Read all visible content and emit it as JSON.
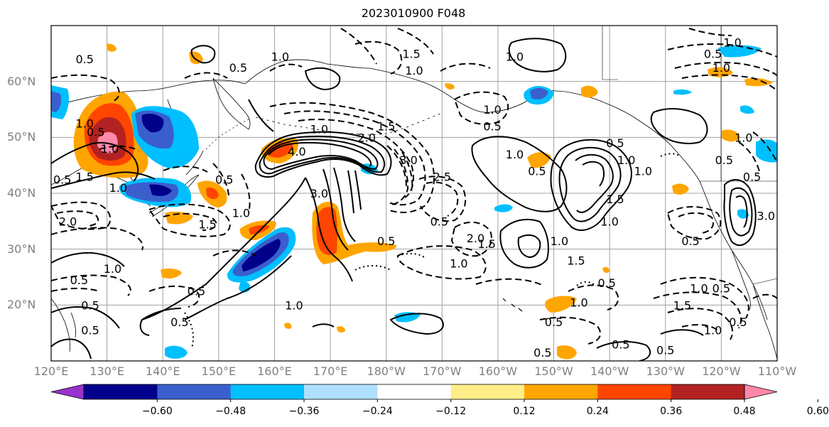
{
  "title": "2023010900 F048",
  "map": {
    "projection": "equirectangular",
    "lon_range": [
      120,
      250
    ],
    "lat_range": [
      10,
      70
    ],
    "lat_ticks": [
      {
        "value": 60,
        "label": "60°N"
      },
      {
        "value": 50,
        "label": "50°N"
      },
      {
        "value": 40,
        "label": "40°N"
      },
      {
        "value": 30,
        "label": "30°N"
      },
      {
        "value": 20,
        "label": "20°N"
      }
    ],
    "lon_ticks": [
      {
        "value": 120,
        "label": "120°E"
      },
      {
        "value": 130,
        "label": "130°E"
      },
      {
        "value": 140,
        "label": "140°E"
      },
      {
        "value": 150,
        "label": "150°E"
      },
      {
        "value": 160,
        "label": "160°E"
      },
      {
        "value": 170,
        "label": "170°E"
      },
      {
        "value": 180,
        "label": "180°W"
      },
      {
        "value": 190,
        "label": "170°W"
      },
      {
        "value": 200,
        "label": "160°W"
      },
      {
        "value": 210,
        "label": "150°W"
      },
      {
        "value": 220,
        "label": "140°W"
      },
      {
        "value": 230,
        "label": "130°W"
      },
      {
        "value": 240,
        "label": "120°W"
      },
      {
        "value": 250,
        "label": "110°W"
      }
    ],
    "grid": true
  },
  "colorbar": {
    "ticks": [
      "−0.60",
      "−0.48",
      "−0.36",
      "−0.24",
      "−0.12",
      "0.12",
      "0.24",
      "0.36",
      "0.48",
      "0.60"
    ],
    "colors": [
      "#9932cc",
      "#00008b",
      "#3a5fcd",
      "#00bfff",
      "#b0e0ff",
      "#ffffff",
      "#ffee88",
      "#ffa500",
      "#ff4500",
      "#b22222",
      "#ff88aa"
    ],
    "extend": "both"
  },
  "contour_labels": [
    {
      "text": "0.5",
      "lon": 126,
      "lat": 64
    },
    {
      "text": "1.0",
      "lon": 161,
      "lat": 64.5
    },
    {
      "text": "0.5",
      "lon": 153.5,
      "lat": 62.5
    },
    {
      "text": "1.5",
      "lon": 184.5,
      "lat": 65
    },
    {
      "text": "1.0",
      "lon": 185,
      "lat": 62
    },
    {
      "text": "1.0",
      "lon": 203,
      "lat": 64.5
    },
    {
      "text": "1.0",
      "lon": 242,
      "lat": 67
    },
    {
      "text": "0.5",
      "lon": 238.5,
      "lat": 65
    },
    {
      "text": "1.0",
      "lon": 240,
      "lat": 62.5
    },
    {
      "text": "1.0",
      "lon": 126,
      "lat": 52.5
    },
    {
      "text": "0.5",
      "lon": 128,
      "lat": 51
    },
    {
      "text": "1.0",
      "lon": 130.5,
      "lat": 48
    },
    {
      "text": "1.5",
      "lon": 126,
      "lat": 43
    },
    {
      "text": "1.0",
      "lon": 132,
      "lat": 41
    },
    {
      "text": "0.5",
      "lon": 122,
      "lat": 42.5
    },
    {
      "text": "2.0",
      "lon": 123,
      "lat": 35
    },
    {
      "text": "1.5",
      "lon": 148,
      "lat": 34.5
    },
    {
      "text": "1.0",
      "lon": 154,
      "lat": 36.5
    },
    {
      "text": "0.5",
      "lon": 151,
      "lat": 42.5
    },
    {
      "text": "1.0",
      "lon": 131,
      "lat": 26.5
    },
    {
      "text": "0.5",
      "lon": 125,
      "lat": 24.5
    },
    {
      "text": "0.5",
      "lon": 146,
      "lat": 22.5
    },
    {
      "text": "0.5",
      "lon": 143,
      "lat": 17
    },
    {
      "text": "1.0",
      "lon": 163.5,
      "lat": 20
    },
    {
      "text": "0.5",
      "lon": 127,
      "lat": 20
    },
    {
      "text": "0.5",
      "lon": 127,
      "lat": 15.5
    },
    {
      "text": "4.0",
      "lon": 164,
      "lat": 47.5
    },
    {
      "text": "1.0",
      "lon": 168,
      "lat": 51.5
    },
    {
      "text": "1.5",
      "lon": 180,
      "lat": 52
    },
    {
      "text": "2.0",
      "lon": 176.5,
      "lat": 50
    },
    {
      "text": "3.0",
      "lon": 184,
      "lat": 46
    },
    {
      "text": "3.0",
      "lon": 168,
      "lat": 40
    },
    {
      "text": "2.5",
      "lon": 190,
      "lat": 43
    },
    {
      "text": "0.5",
      "lon": 189.5,
      "lat": 35
    },
    {
      "text": "0.5",
      "lon": 180,
      "lat": 31.5
    },
    {
      "text": "2.0",
      "lon": 196,
      "lat": 32
    },
    {
      "text": "1.5",
      "lon": 198,
      "lat": 31
    },
    {
      "text": "1.0",
      "lon": 193,
      "lat": 27.5
    },
    {
      "text": "1.0",
      "lon": 211,
      "lat": 31.5
    },
    {
      "text": "1.5",
      "lon": 214,
      "lat": 28
    },
    {
      "text": "1.0",
      "lon": 203,
      "lat": 47
    },
    {
      "text": "0.5",
      "lon": 207,
      "lat": 44
    },
    {
      "text": "1.0",
      "lon": 199,
      "lat": 55
    },
    {
      "text": "0.5",
      "lon": 199,
      "lat": 52
    },
    {
      "text": "0.5",
      "lon": 221,
      "lat": 49
    },
    {
      "text": "1.0",
      "lon": 223,
      "lat": 46
    },
    {
      "text": "1.0",
      "lon": 226,
      "lat": 44
    },
    {
      "text": "1.5",
      "lon": 221,
      "lat": 39
    },
    {
      "text": "1.0",
      "lon": 220,
      "lat": 35
    },
    {
      "text": "0.5",
      "lon": 219.5,
      "lat": 24
    },
    {
      "text": "1.0",
      "lon": 214.5,
      "lat": 20.5
    },
    {
      "text": "0.5",
      "lon": 210,
      "lat": 17
    },
    {
      "text": "0.5",
      "lon": 222,
      "lat": 13
    },
    {
      "text": "0.5",
      "lon": 208,
      "lat": 11.5
    },
    {
      "text": "1.5",
      "lon": 233,
      "lat": 20
    },
    {
      "text": "1.0",
      "lon": 236,
      "lat": 23
    },
    {
      "text": "0.5",
      "lon": 240,
      "lat": 23
    },
    {
      "text": "1.0",
      "lon": 238.5,
      "lat": 15.5
    },
    {
      "text": "0.5",
      "lon": 243,
      "lat": 17
    },
    {
      "text": "0.5",
      "lon": 234.5,
      "lat": 31.5
    },
    {
      "text": "3.0",
      "lon": 248,
      "lat": 36
    },
    {
      "text": "0.5",
      "lon": 240.5,
      "lat": 46
    },
    {
      "text": "1.0",
      "lon": 244,
      "lat": 50
    },
    {
      "text": "0.5",
      "lon": 245.5,
      "lat": 43
    },
    {
      "text": "0.5",
      "lon": 230,
      "lat": 12
    }
  ]
}
